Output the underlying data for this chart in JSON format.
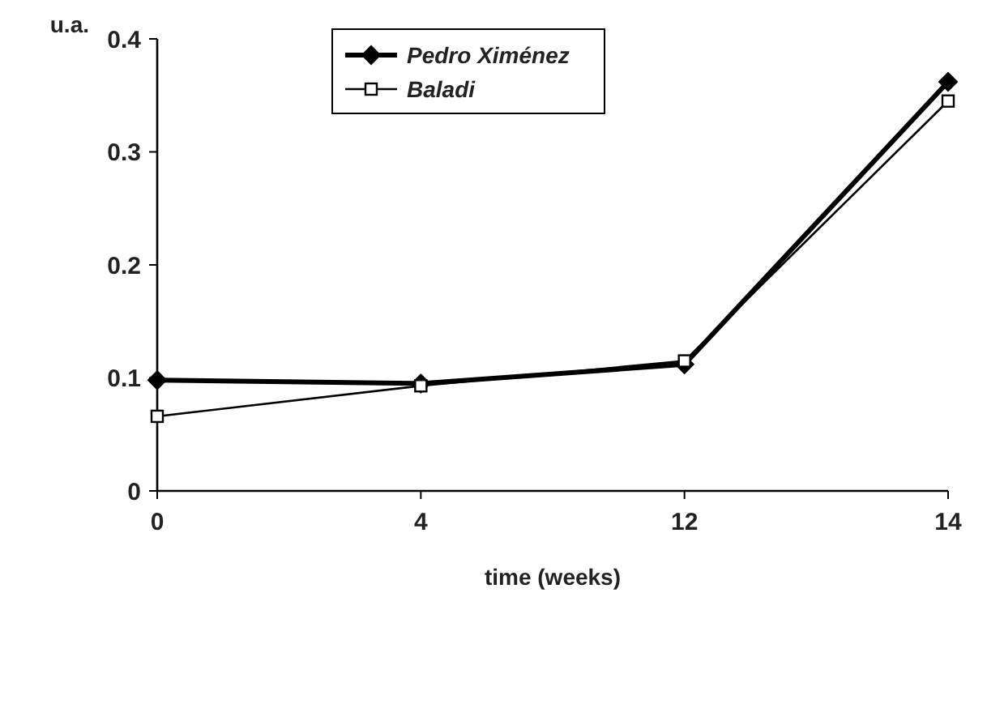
{
  "chart_data": {
    "type": "line",
    "xlabel": "time (weeks)",
    "ylabel": "u.a.",
    "categories": [
      "0",
      "4",
      "12",
      "14"
    ],
    "ylim": [
      0,
      0.4
    ],
    "yticks": [
      {
        "value": 0,
        "label": "0"
      },
      0.1,
      0.2,
      0.3,
      0.4
    ],
    "grid": false,
    "legend": "top",
    "series": [
      {
        "name": "Pedro Ximénez",
        "color": "#000000",
        "marker": "diamond",
        "values": [
          0.098,
          0.095,
          0.112,
          0.362
        ]
      },
      {
        "name": "Baladi",
        "color": "#000000",
        "marker": "square",
        "values": [
          0.066,
          0.093,
          0.115,
          0.345
        ]
      }
    ]
  }
}
